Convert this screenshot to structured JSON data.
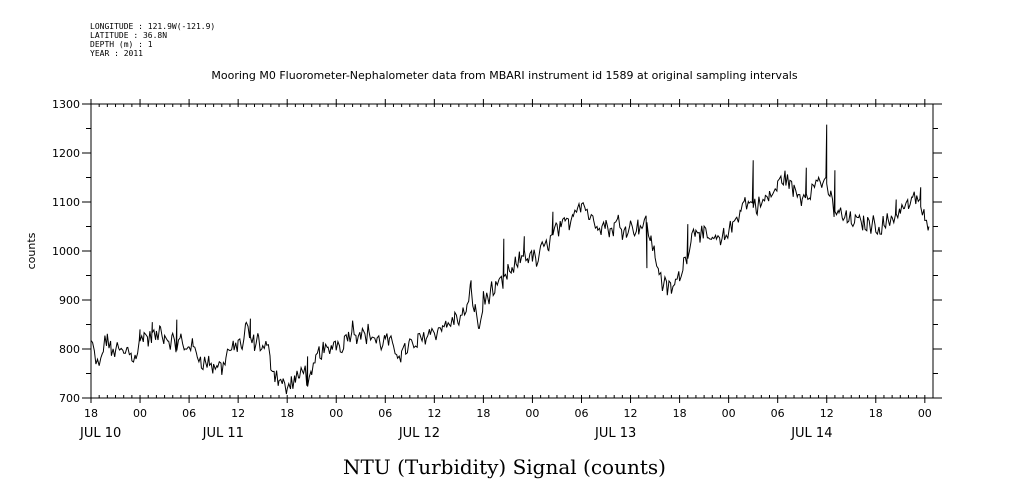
{
  "meta_lines": [
    "LONGITUDE : 121.9W(-121.9)",
    "LATITUDE : 36.8N",
    "DEPTH (m) : 1",
    "YEAR : 2011"
  ],
  "chart_data": {
    "type": "line",
    "title": "Mooring M0 Fluorometer-Nephalometer data from MBARI instrument id 1589 at original sampling intervals",
    "xlabel": "NTU (Turbidity) Signal (counts)",
    "ylabel": "counts",
    "ylim": [
      700,
      1300
    ],
    "xlim_hours": [
      0,
      103
    ],
    "y_ticks": [
      700,
      800,
      900,
      1000,
      1100,
      1200,
      1300
    ],
    "y_tick_labels": [
      "700",
      "800",
      "900",
      "1000",
      "1100",
      "1200",
      "1300"
    ],
    "x_ticks_hours": [
      0,
      6,
      12,
      18,
      24,
      30,
      36,
      42,
      48,
      54,
      60,
      66,
      72,
      78,
      84,
      90,
      96,
      102
    ],
    "x_tick_labels": [
      "18",
      "00",
      "06",
      "12",
      "18",
      "00",
      "06",
      "12",
      "18",
      "00",
      "06",
      "12",
      "18",
      "00",
      "06",
      "12",
      "18",
      "00"
    ],
    "day_labels": [
      {
        "text": "JUL 10",
        "hour": 0
      },
      {
        "text": "JUL 11",
        "hour": 15
      },
      {
        "text": "JUL 12",
        "hour": 39
      },
      {
        "text": "JUL 13",
        "hour": 63
      },
      {
        "text": "JUL 14",
        "hour": 87
      }
    ],
    "series": [
      {
        "points": [
          [
            0,
            815
          ],
          [
            0.6,
            775
          ],
          [
            1,
            760
          ],
          [
            1.5,
            800
          ],
          [
            2,
            825
          ],
          [
            2.5,
            790
          ],
          [
            3,
            800
          ],
          [
            3.5,
            795
          ],
          [
            4,
            790
          ],
          [
            4.5,
            800
          ],
          [
            5,
            785
          ],
          [
            5.5,
            790
          ],
          [
            6,
            810
          ],
          [
            6.5,
            835
          ],
          [
            7,
            815
          ],
          [
            7.5,
            830
          ],
          [
            8,
            820
          ],
          [
            8.5,
            840
          ],
          [
            9,
            825
          ],
          [
            9.5,
            820
          ],
          [
            10,
            815
          ],
          [
            10.5,
            805
          ],
          [
            11,
            820
          ],
          [
            11.5,
            795
          ],
          [
            12,
            815
          ],
          [
            12.5,
            800
          ],
          [
            13,
            790
          ],
          [
            13.5,
            780
          ],
          [
            14,
            770
          ],
          [
            14.5,
            775
          ],
          [
            15,
            760
          ],
          [
            15.5,
            770
          ],
          [
            16,
            760
          ],
          [
            16.5,
            785
          ],
          [
            17,
            800
          ],
          [
            17.5,
            795
          ],
          [
            18,
            815
          ],
          [
            18.5,
            805
          ],
          [
            19,
            845
          ],
          [
            19.5,
            820
          ],
          [
            20,
            810
          ],
          [
            20.5,
            820
          ],
          [
            21,
            800
          ],
          [
            21.5,
            805
          ],
          [
            22,
            775
          ],
          [
            22.5,
            750
          ],
          [
            23,
            740
          ],
          [
            23.5,
            730
          ],
          [
            24,
            715
          ],
          [
            24.5,
            730
          ],
          [
            25,
            735
          ],
          [
            25.5,
            740
          ],
          [
            26,
            770
          ],
          [
            26.5,
            730
          ],
          [
            27,
            735
          ],
          [
            27.5,
            780
          ],
          [
            28,
            795
          ],
          [
            28.5,
            800
          ],
          [
            29,
            790
          ],
          [
            29.5,
            810
          ],
          [
            30,
            815
          ],
          [
            30.5,
            805
          ],
          [
            31,
            820
          ],
          [
            31.5,
            830
          ],
          [
            32,
            845
          ],
          [
            32.5,
            830
          ],
          [
            33,
            840
          ],
          [
            33.5,
            825
          ],
          [
            34,
            835
          ],
          [
            34.5,
            825
          ],
          [
            35,
            815
          ],
          [
            35.5,
            810
          ],
          [
            36,
            820
          ],
          [
            36.5,
            810
          ],
          [
            37,
            800
          ],
          [
            37.5,
            795
          ],
          [
            38,
            790
          ],
          [
            38.5,
            800
          ],
          [
            39,
            810
          ],
          [
            39.5,
            800
          ],
          [
            40,
            815
          ],
          [
            40.5,
            820
          ],
          [
            41,
            830
          ],
          [
            41.5,
            835
          ],
          [
            42,
            840
          ],
          [
            42.5,
            835
          ],
          [
            43,
            850
          ],
          [
            43.5,
            845
          ],
          [
            44,
            855
          ],
          [
            44.5,
            860
          ],
          [
            45,
            860
          ],
          [
            45.5,
            870
          ],
          [
            46,
            880
          ],
          [
            46.5,
            920
          ],
          [
            47,
            880
          ],
          [
            47.5,
            840
          ],
          [
            48,
            900
          ],
          [
            48.5,
            905
          ],
          [
            49,
            920
          ],
          [
            49.5,
            915
          ],
          [
            50,
            935
          ],
          [
            50.5,
            930
          ],
          [
            51,
            960
          ],
          [
            51.5,
            950
          ],
          [
            52,
            975
          ],
          [
            52.5,
            980
          ],
          [
            53,
            1000
          ],
          [
            53.5,
            985
          ],
          [
            54,
            990
          ],
          [
            54.5,
            975
          ],
          [
            55,
            1000
          ],
          [
            55.5,
            1005
          ],
          [
            56,
            1020
          ],
          [
            56.5,
            1030
          ],
          [
            57,
            1050
          ],
          [
            57.5,
            1040
          ],
          [
            58,
            1055
          ],
          [
            58.5,
            1060
          ],
          [
            59,
            1080
          ],
          [
            59.5,
            1095
          ],
          [
            60,
            1100
          ],
          [
            60.5,
            1090
          ],
          [
            61,
            1070
          ],
          [
            61.5,
            1060
          ],
          [
            62,
            1060
          ],
          [
            62.5,
            1050
          ],
          [
            63,
            1055
          ],
          [
            63.5,
            1040
          ],
          [
            64,
            1050
          ],
          [
            64.5,
            1060
          ],
          [
            65,
            1045
          ],
          [
            65.5,
            1050
          ],
          [
            66,
            1050
          ],
          [
            66.5,
            1045
          ],
          [
            67,
            1055
          ],
          [
            67.5,
            1050
          ],
          [
            68,
            1060
          ],
          [
            68.5,
            1020
          ],
          [
            69,
            990
          ],
          [
            69.5,
            960
          ],
          [
            70,
            930
          ],
          [
            70.5,
            925
          ],
          [
            71,
            920
          ],
          [
            71.5,
            935
          ],
          [
            72,
            950
          ],
          [
            72.5,
            975
          ],
          [
            73,
            1000
          ],
          [
            73.5,
            1030
          ],
          [
            74,
            1050
          ],
          [
            74.5,
            1040
          ],
          [
            75,
            1030
          ],
          [
            75.5,
            1015
          ],
          [
            76,
            1030
          ],
          [
            76.5,
            1020
          ],
          [
            77,
            1015
          ],
          [
            77.5,
            1030
          ],
          [
            78,
            1040
          ],
          [
            78.5,
            1050
          ],
          [
            79,
            1070
          ],
          [
            79.5,
            1090
          ],
          [
            80,
            1100
          ],
          [
            80.5,
            1095
          ],
          [
            81,
            1100
          ],
          [
            81.5,
            1090
          ],
          [
            82,
            1095
          ],
          [
            82.5,
            1105
          ],
          [
            83,
            1110
          ],
          [
            83.5,
            1120
          ],
          [
            84,
            1130
          ],
          [
            84.5,
            1150
          ],
          [
            85,
            1150
          ],
          [
            85.5,
            1135
          ],
          [
            86,
            1120
          ],
          [
            86.5,
            1115
          ],
          [
            87,
            1110
          ],
          [
            87.5,
            1120
          ],
          [
            88,
            1125
          ],
          [
            88.5,
            1130
          ],
          [
            89,
            1150
          ],
          [
            89.5,
            1140
          ],
          [
            90,
            1125
          ],
          [
            90.5,
            1110
          ],
          [
            91,
            1080
          ],
          [
            91.5,
            1075
          ],
          [
            92,
            1070
          ],
          [
            92.5,
            1065
          ],
          [
            93,
            1060
          ],
          [
            93.5,
            1065
          ],
          [
            94,
            1055
          ],
          [
            94.5,
            1060
          ],
          [
            95,
            1055
          ],
          [
            95.5,
            1050
          ],
          [
            96,
            1060
          ],
          [
            96.5,
            1045
          ],
          [
            97,
            1055
          ],
          [
            97.5,
            1060
          ],
          [
            98,
            1070
          ],
          [
            98.5,
            1075
          ],
          [
            99,
            1085
          ],
          [
            99.5,
            1090
          ],
          [
            100,
            1095
          ],
          [
            100.5,
            1100
          ],
          [
            101,
            1110
          ],
          [
            101.5,
            1095
          ],
          [
            102,
            1060
          ],
          [
            102.5,
            1050
          ]
        ],
        "spikes": [
          [
            6,
            840
          ],
          [
            7.5,
            855
          ],
          [
            10.5,
            860
          ],
          [
            19.5,
            862
          ],
          [
            26.5,
            785
          ],
          [
            46.5,
            940
          ],
          [
            50.5,
            1025
          ],
          [
            53,
            1030
          ],
          [
            56.5,
            1080
          ],
          [
            68,
            965
          ],
          [
            73,
            1055
          ],
          [
            81,
            1185
          ],
          [
            87.5,
            1170
          ],
          [
            90,
            1258
          ],
          [
            91,
            1165
          ],
          [
            98.5,
            1105
          ],
          [
            101.5,
            1130
          ]
        ]
      }
    ]
  }
}
